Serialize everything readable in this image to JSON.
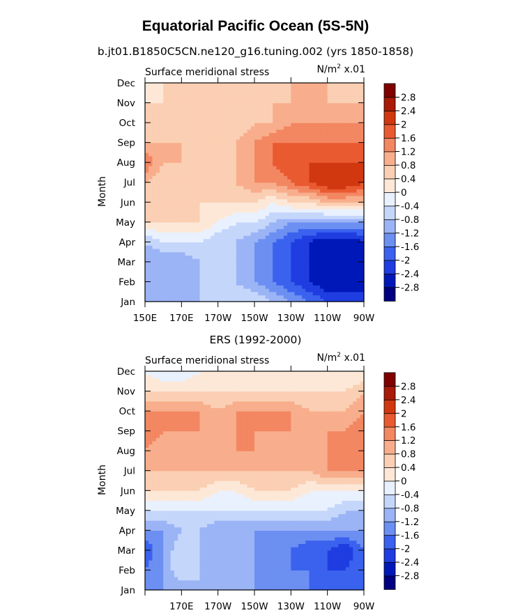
{
  "figure": {
    "title": "Equatorial Pacific Ocean (5S-5N)"
  },
  "chart_data": [
    {
      "type": "heatmap",
      "subtitle": "b.jt01.B1850C5CN.ne120_g16.tuning.002 (yrs 1850-1858)",
      "panel_label": "Surface meridional stress",
      "units_prefix": "N/m",
      "units_exp": "2",
      "units_suffix": " x.01",
      "ylabel": "Month",
      "x_ticks": [
        "150E",
        "170E",
        "170W",
        "150W",
        "130W",
        "110W",
        "90W"
      ],
      "y_ticks": [
        "Jan",
        "Feb",
        "Mar",
        "Apr",
        "May",
        "Jun",
        "Jul",
        "Aug",
        "Sep",
        "Oct",
        "Nov",
        "Dec"
      ],
      "xlim_deg_east": [
        150,
        270
      ],
      "colorbar_labels": [
        "2.8",
        "2.4",
        "2",
        "1.6",
        "1.2",
        "0.8",
        "0.4",
        "0",
        "-0.4",
        "-0.8",
        "-1.2",
        "-1.6",
        "-2",
        "-2.4",
        "-2.8"
      ],
      "x_deg_east": [
        150,
        160,
        170,
        180,
        190,
        200,
        210,
        220,
        230,
        240,
        250,
        260,
        270
      ],
      "values": [
        [
          -0.8,
          -1.2,
          -0.8,
          -0.8,
          -0.8,
          -0.4,
          -0.4,
          -0.8,
          -1.2,
          -1.6,
          -2.0,
          -2.0,
          -2.0
        ],
        [
          -1.2,
          -1.2,
          -1.2,
          -0.8,
          -0.8,
          -0.8,
          -1.2,
          -1.6,
          -2.0,
          -2.4,
          -2.8,
          -2.8,
          -2.8
        ],
        [
          -1.2,
          -1.2,
          -1.2,
          -0.8,
          -0.8,
          -0.8,
          -1.2,
          -1.6,
          -2.0,
          -2.4,
          -2.8,
          -2.8,
          -2.8
        ],
        [
          -0.8,
          -0.4,
          -0.4,
          -0.4,
          -0.8,
          -0.8,
          -1.2,
          -1.6,
          -2.0,
          -2.4,
          -2.8,
          -2.8,
          -2.4
        ],
        [
          0.4,
          0.4,
          0.4,
          0.4,
          0.0,
          -0.4,
          -0.4,
          -0.8,
          -1.2,
          -1.2,
          -1.2,
          -1.2,
          -1.2
        ],
        [
          0.8,
          0.4,
          0.8,
          0.4,
          0.4,
          0.4,
          0.4,
          0.0,
          0.4,
          0.4,
          0.8,
          0.8,
          0.8
        ],
        [
          0.8,
          0.4,
          0.8,
          0.4,
          0.4,
          0.8,
          1.2,
          1.2,
          1.6,
          2.0,
          2.4,
          2.4,
          2.0
        ],
        [
          1.6,
          0.8,
          0.8,
          0.4,
          0.4,
          0.8,
          1.2,
          1.6,
          2.0,
          2.0,
          2.0,
          2.0,
          2.0
        ],
        [
          0.8,
          0.8,
          0.8,
          0.4,
          0.4,
          0.8,
          1.2,
          1.6,
          1.6,
          1.6,
          1.6,
          1.6,
          1.6
        ],
        [
          0.4,
          0.4,
          0.8,
          0.4,
          0.4,
          0.4,
          0.8,
          0.8,
          1.2,
          1.2,
          1.2,
          1.2,
          1.2
        ],
        [
          0.4,
          0.4,
          0.4,
          0.4,
          0.4,
          0.4,
          0.4,
          0.8,
          0.8,
          0.8,
          0.8,
          0.8,
          0.8
        ],
        [
          0.0,
          0.4,
          0.4,
          0.4,
          0.4,
          0.4,
          0.4,
          0.4,
          0.8,
          0.8,
          0.8,
          0.4,
          0.4
        ]
      ]
    },
    {
      "type": "heatmap",
      "subtitle": "ERS (1992-2000)",
      "panel_label": "Surface meridional stress",
      "units_prefix": "N/m",
      "units_exp": "2",
      "units_suffix": " x.01",
      "ylabel": "Month",
      "x_ticks": [
        "",
        "170E",
        "170W",
        "150W",
        "130W",
        "110W",
        "90W"
      ],
      "y_ticks": [
        "Jan",
        "Feb",
        "Mar",
        "Apr",
        "May",
        "Jun",
        "Jul",
        "Aug",
        "Sep",
        "Oct",
        "Nov",
        "Dec"
      ],
      "xlim_deg_east": [
        150,
        270
      ],
      "colorbar_labels": [
        "2.8",
        "2.4",
        "2",
        "1.6",
        "1.2",
        "0.8",
        "0.4",
        "0",
        "-0.4",
        "-0.8",
        "-1.2",
        "-1.6",
        "-2",
        "-2.4",
        "-2.8"
      ],
      "x_deg_east": [
        150,
        160,
        170,
        180,
        190,
        200,
        210,
        220,
        230,
        240,
        250,
        260,
        270
      ],
      "values": [
        [
          -1.6,
          -1.2,
          -1.2,
          -0.8,
          -1.2,
          -1.2,
          -1.2,
          -1.2,
          -1.2,
          -1.6,
          -1.6,
          -1.6,
          -1.6
        ],
        [
          -1.6,
          -1.2,
          -0.4,
          -0.8,
          -1.2,
          -1.2,
          -1.2,
          -1.6,
          -1.6,
          -1.6,
          -2.0,
          -2.0,
          -1.6
        ],
        [
          -2.0,
          -1.2,
          -0.4,
          -0.8,
          -1.2,
          -1.2,
          -1.2,
          -1.6,
          -1.6,
          -2.0,
          -2.0,
          -2.4,
          -1.6
        ],
        [
          -1.2,
          -1.2,
          -0.8,
          -0.8,
          -1.2,
          -1.2,
          -1.2,
          -1.2,
          -1.2,
          -1.2,
          -1.2,
          -1.2,
          -1.2
        ],
        [
          -0.4,
          -0.4,
          -0.4,
          -0.4,
          -0.4,
          -0.4,
          -0.4,
          -0.4,
          -0.4,
          -0.4,
          -0.4,
          -0.8,
          -0.8
        ],
        [
          0.4,
          0.4,
          0.4,
          0.4,
          0.0,
          0.0,
          0.4,
          0.4,
          0.4,
          0.0,
          0.0,
          0.0,
          0.0
        ],
        [
          0.8,
          0.8,
          0.8,
          0.8,
          0.8,
          0.8,
          0.8,
          0.8,
          0.8,
          0.8,
          1.2,
          1.2,
          1.2
        ],
        [
          1.2,
          0.8,
          0.8,
          1.2,
          0.8,
          1.2,
          1.2,
          0.8,
          1.2,
          0.8,
          1.2,
          1.2,
          1.2
        ],
        [
          1.6,
          1.2,
          1.2,
          1.2,
          1.2,
          1.2,
          1.2,
          1.2,
          1.2,
          0.8,
          1.2,
          1.2,
          1.6
        ],
        [
          1.2,
          1.2,
          1.2,
          1.2,
          0.8,
          1.2,
          1.2,
          1.2,
          1.2,
          0.8,
          0.8,
          0.8,
          1.2
        ],
        [
          0.4,
          0.4,
          0.4,
          0.4,
          0.4,
          0.4,
          0.4,
          0.4,
          0.4,
          0.4,
          0.4,
          0.4,
          0.8
        ],
        [
          0.0,
          -0.4,
          -0.4,
          0.0,
          0.0,
          0.0,
          0.0,
          0.0,
          0.0,
          0.0,
          0.0,
          0.0,
          0.0
        ]
      ]
    }
  ],
  "colors": {
    "levels": [
      -2.8,
      -2.4,
      -2.0,
      -1.6,
      -1.2,
      -0.8,
      -0.4,
      0.0,
      0.4,
      0.8,
      1.2,
      1.6,
      2.0,
      2.4,
      2.8
    ],
    "bins": [
      "#000080",
      "#0018b8",
      "#1f3de0",
      "#3a62ee",
      "#6c8ff2",
      "#9bb4f6",
      "#c5d6fb",
      "#e9f1fe",
      "#fde8d8",
      "#fbcfb3",
      "#f8ae8c",
      "#f38762",
      "#ea5a30",
      "#d23810",
      "#aa1a08",
      "#800000"
    ]
  }
}
